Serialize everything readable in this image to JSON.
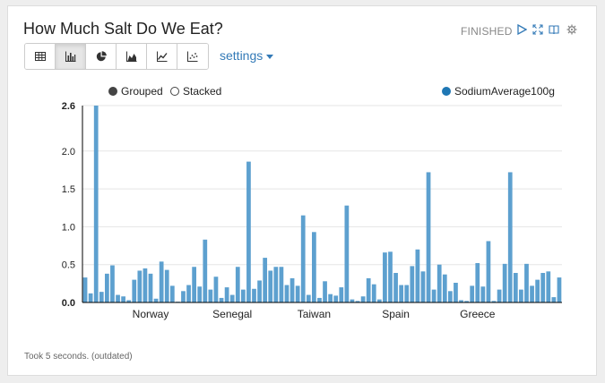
{
  "paragraph": {
    "title": "How Much Salt Do We Eat?",
    "status": "FINISHED",
    "footer": "Took 5 seconds. (outdated)"
  },
  "toolbar": {
    "settings_label": "settings",
    "buttons": [
      {
        "icon": "table-icon"
      },
      {
        "icon": "bar-chart-icon",
        "active": true
      },
      {
        "icon": "pie-chart-icon"
      },
      {
        "icon": "area-chart-icon"
      },
      {
        "icon": "line-chart-icon"
      },
      {
        "icon": "scatter-chart-icon"
      }
    ]
  },
  "controls": {
    "grouped_label": "Grouped",
    "stacked_label": "Stacked",
    "series_legend_label": "SodiumAverage100g"
  },
  "colors": {
    "bar": "#5da0cf",
    "legend_dot": "#1f77b4",
    "link": "#337ab7"
  },
  "chart_data": {
    "type": "bar",
    "mode": "grouped",
    "legend_position": "top-right",
    "grid": true,
    "ylim": [
      0,
      2.6
    ],
    "y_ticks": [
      "0.0",
      "0.5",
      "1.0",
      "1.5",
      "2.0",
      "2.6"
    ],
    "x_tick_labels": [
      {
        "index": 12,
        "label": "Norway"
      },
      {
        "index": 27,
        "label": "Senegal"
      },
      {
        "index": 42,
        "label": "Taiwan"
      },
      {
        "index": 57,
        "label": "Spain"
      },
      {
        "index": 72,
        "label": "Greece"
      }
    ],
    "series": [
      {
        "name": "SodiumAverage100g",
        "values": [
          0.33,
          0.12,
          2.6,
          0.14,
          0.38,
          0.49,
          0.1,
          0.08,
          0.03,
          0.3,
          0.42,
          0.45,
          0.38,
          0.05,
          0.54,
          0.43,
          0.22,
          0.01,
          0.15,
          0.23,
          0.47,
          0.21,
          0.83,
          0.17,
          0.34,
          0.06,
          0.2,
          0.1,
          0.47,
          0.17,
          1.86,
          0.18,
          0.29,
          0.59,
          0.42,
          0.47,
          0.47,
          0.23,
          0.32,
          0.22,
          1.15,
          0.1,
          0.93,
          0.06,
          0.28,
          0.11,
          0.09,
          0.2,
          1.28,
          0.04,
          0.02,
          0.08,
          0.32,
          0.24,
          0.04,
          0.66,
          0.67,
          0.39,
          0.23,
          0.23,
          0.48,
          0.7,
          0.41,
          1.72,
          0.17,
          0.5,
          0.37,
          0.15,
          0.26,
          0.03,
          0.02,
          0.22,
          0.52,
          0.21,
          0.81,
          0.02,
          0.17,
          0.51,
          1.72,
          0.39,
          0.17,
          0.51,
          0.22,
          0.3,
          0.39,
          0.41,
          0.07,
          0.33
        ]
      }
    ]
  }
}
